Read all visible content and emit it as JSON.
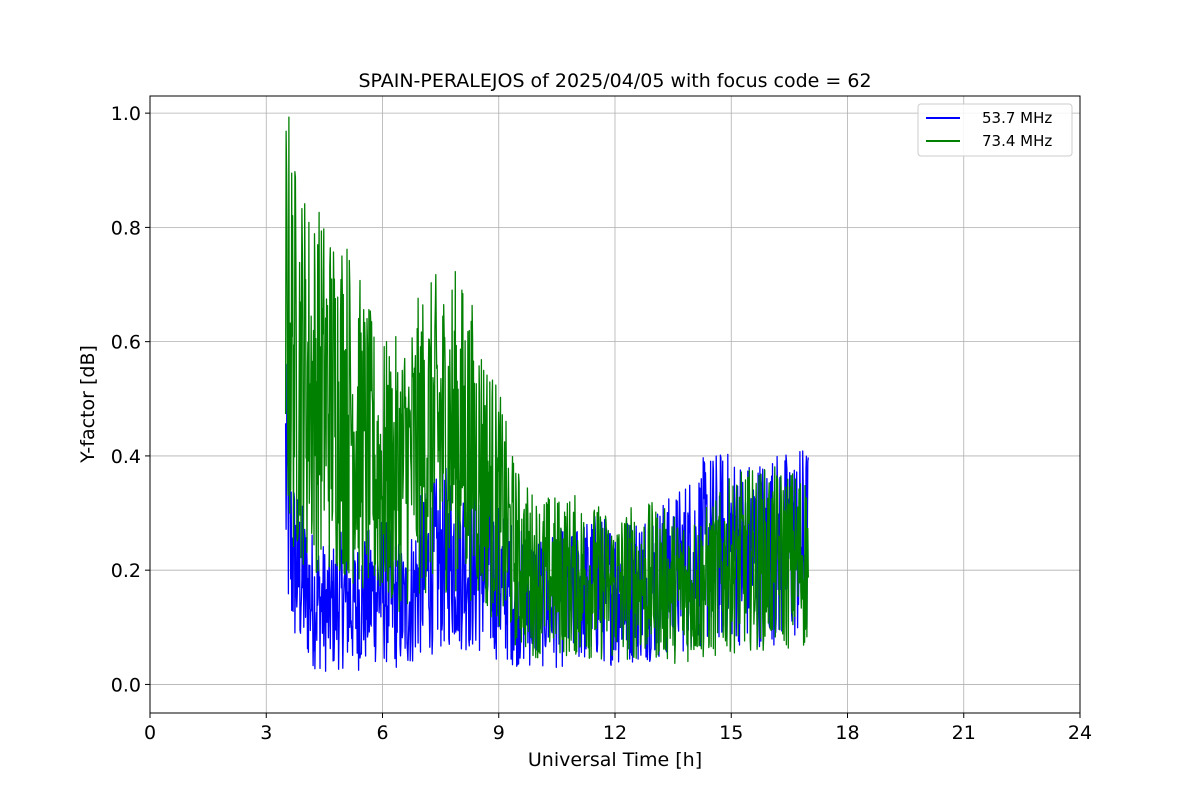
{
  "chart_data": {
    "type": "line",
    "title": "SPAIN-PERALEJOS of 2025/04/05 with focus code = 62",
    "xlabel": "Universal Time [h]",
    "ylabel": "Y-factor [dB]",
    "xlim": [
      0,
      24
    ],
    "ylim": [
      -0.05,
      1.03
    ],
    "xticks": [
      "0",
      "3",
      "6",
      "9",
      "12",
      "15",
      "18",
      "21",
      "24"
    ],
    "yticks": [
      "0.0",
      "0.2",
      "0.4",
      "0.6",
      "0.8",
      "1.0"
    ],
    "grid": true,
    "legend_position": "top-right",
    "series": [
      {
        "name": "53.7 MHz",
        "color": "#0000ff",
        "x": [
          3.5,
          3.55,
          3.6,
          3.7,
          3.8,
          4.0,
          4.2,
          4.4,
          4.6,
          4.8,
          5.0,
          5.2,
          5.4,
          5.6,
          5.8,
          6.0,
          6.2,
          6.4,
          6.6,
          6.8,
          7.0,
          7.2,
          7.4,
          7.6,
          7.8,
          8.0,
          8.2,
          8.4,
          8.6,
          8.8,
          9.0,
          9.2,
          9.4,
          9.6,
          9.8,
          10.0,
          10.5,
          11.0,
          11.5,
          12.0,
          12.5,
          13.0,
          13.5,
          14.0,
          14.5,
          15.0,
          15.5,
          16.0,
          16.5,
          17.0
        ],
        "y": [
          0.38,
          0.32,
          0.25,
          0.22,
          0.2,
          0.17,
          0.15,
          0.14,
          0.13,
          0.14,
          0.15,
          0.14,
          0.14,
          0.15,
          0.16,
          0.17,
          0.15,
          0.14,
          0.13,
          0.16,
          0.19,
          0.2,
          0.21,
          0.22,
          0.23,
          0.22,
          0.21,
          0.2,
          0.2,
          0.19,
          0.18,
          0.17,
          0.16,
          0.15,
          0.15,
          0.15,
          0.15,
          0.16,
          0.17,
          0.16,
          0.17,
          0.18,
          0.19,
          0.22,
          0.24,
          0.24,
          0.23,
          0.24,
          0.24,
          0.25
        ]
      },
      {
        "name": "73.4 MHz",
        "color": "#008000",
        "x": [
          3.5,
          3.55,
          3.6,
          3.7,
          3.8,
          4.0,
          4.2,
          4.4,
          4.6,
          4.8,
          5.0,
          5.2,
          5.4,
          5.6,
          5.8,
          6.0,
          6.2,
          6.4,
          6.6,
          6.8,
          7.0,
          7.2,
          7.4,
          7.6,
          7.8,
          8.0,
          8.2,
          8.4,
          8.6,
          8.8,
          9.0,
          9.2,
          9.4,
          9.6,
          9.8,
          10.0,
          10.5,
          11.0,
          11.5,
          12.0,
          12.5,
          13.0,
          13.5,
          14.0,
          14.5,
          15.0,
          15.5,
          16.0,
          16.5,
          17.0
        ],
        "y": [
          0.64,
          0.66,
          0.62,
          0.58,
          0.56,
          0.54,
          0.52,
          0.52,
          0.5,
          0.5,
          0.5,
          0.47,
          0.44,
          0.41,
          0.38,
          0.37,
          0.36,
          0.37,
          0.38,
          0.4,
          0.42,
          0.43,
          0.44,
          0.44,
          0.45,
          0.44,
          0.42,
          0.4,
          0.37,
          0.34,
          0.31,
          0.27,
          0.23,
          0.21,
          0.2,
          0.19,
          0.19,
          0.19,
          0.18,
          0.17,
          0.18,
          0.18,
          0.17,
          0.17,
          0.18,
          0.21,
          0.22,
          0.22,
          0.22,
          0.22
        ]
      }
    ]
  }
}
